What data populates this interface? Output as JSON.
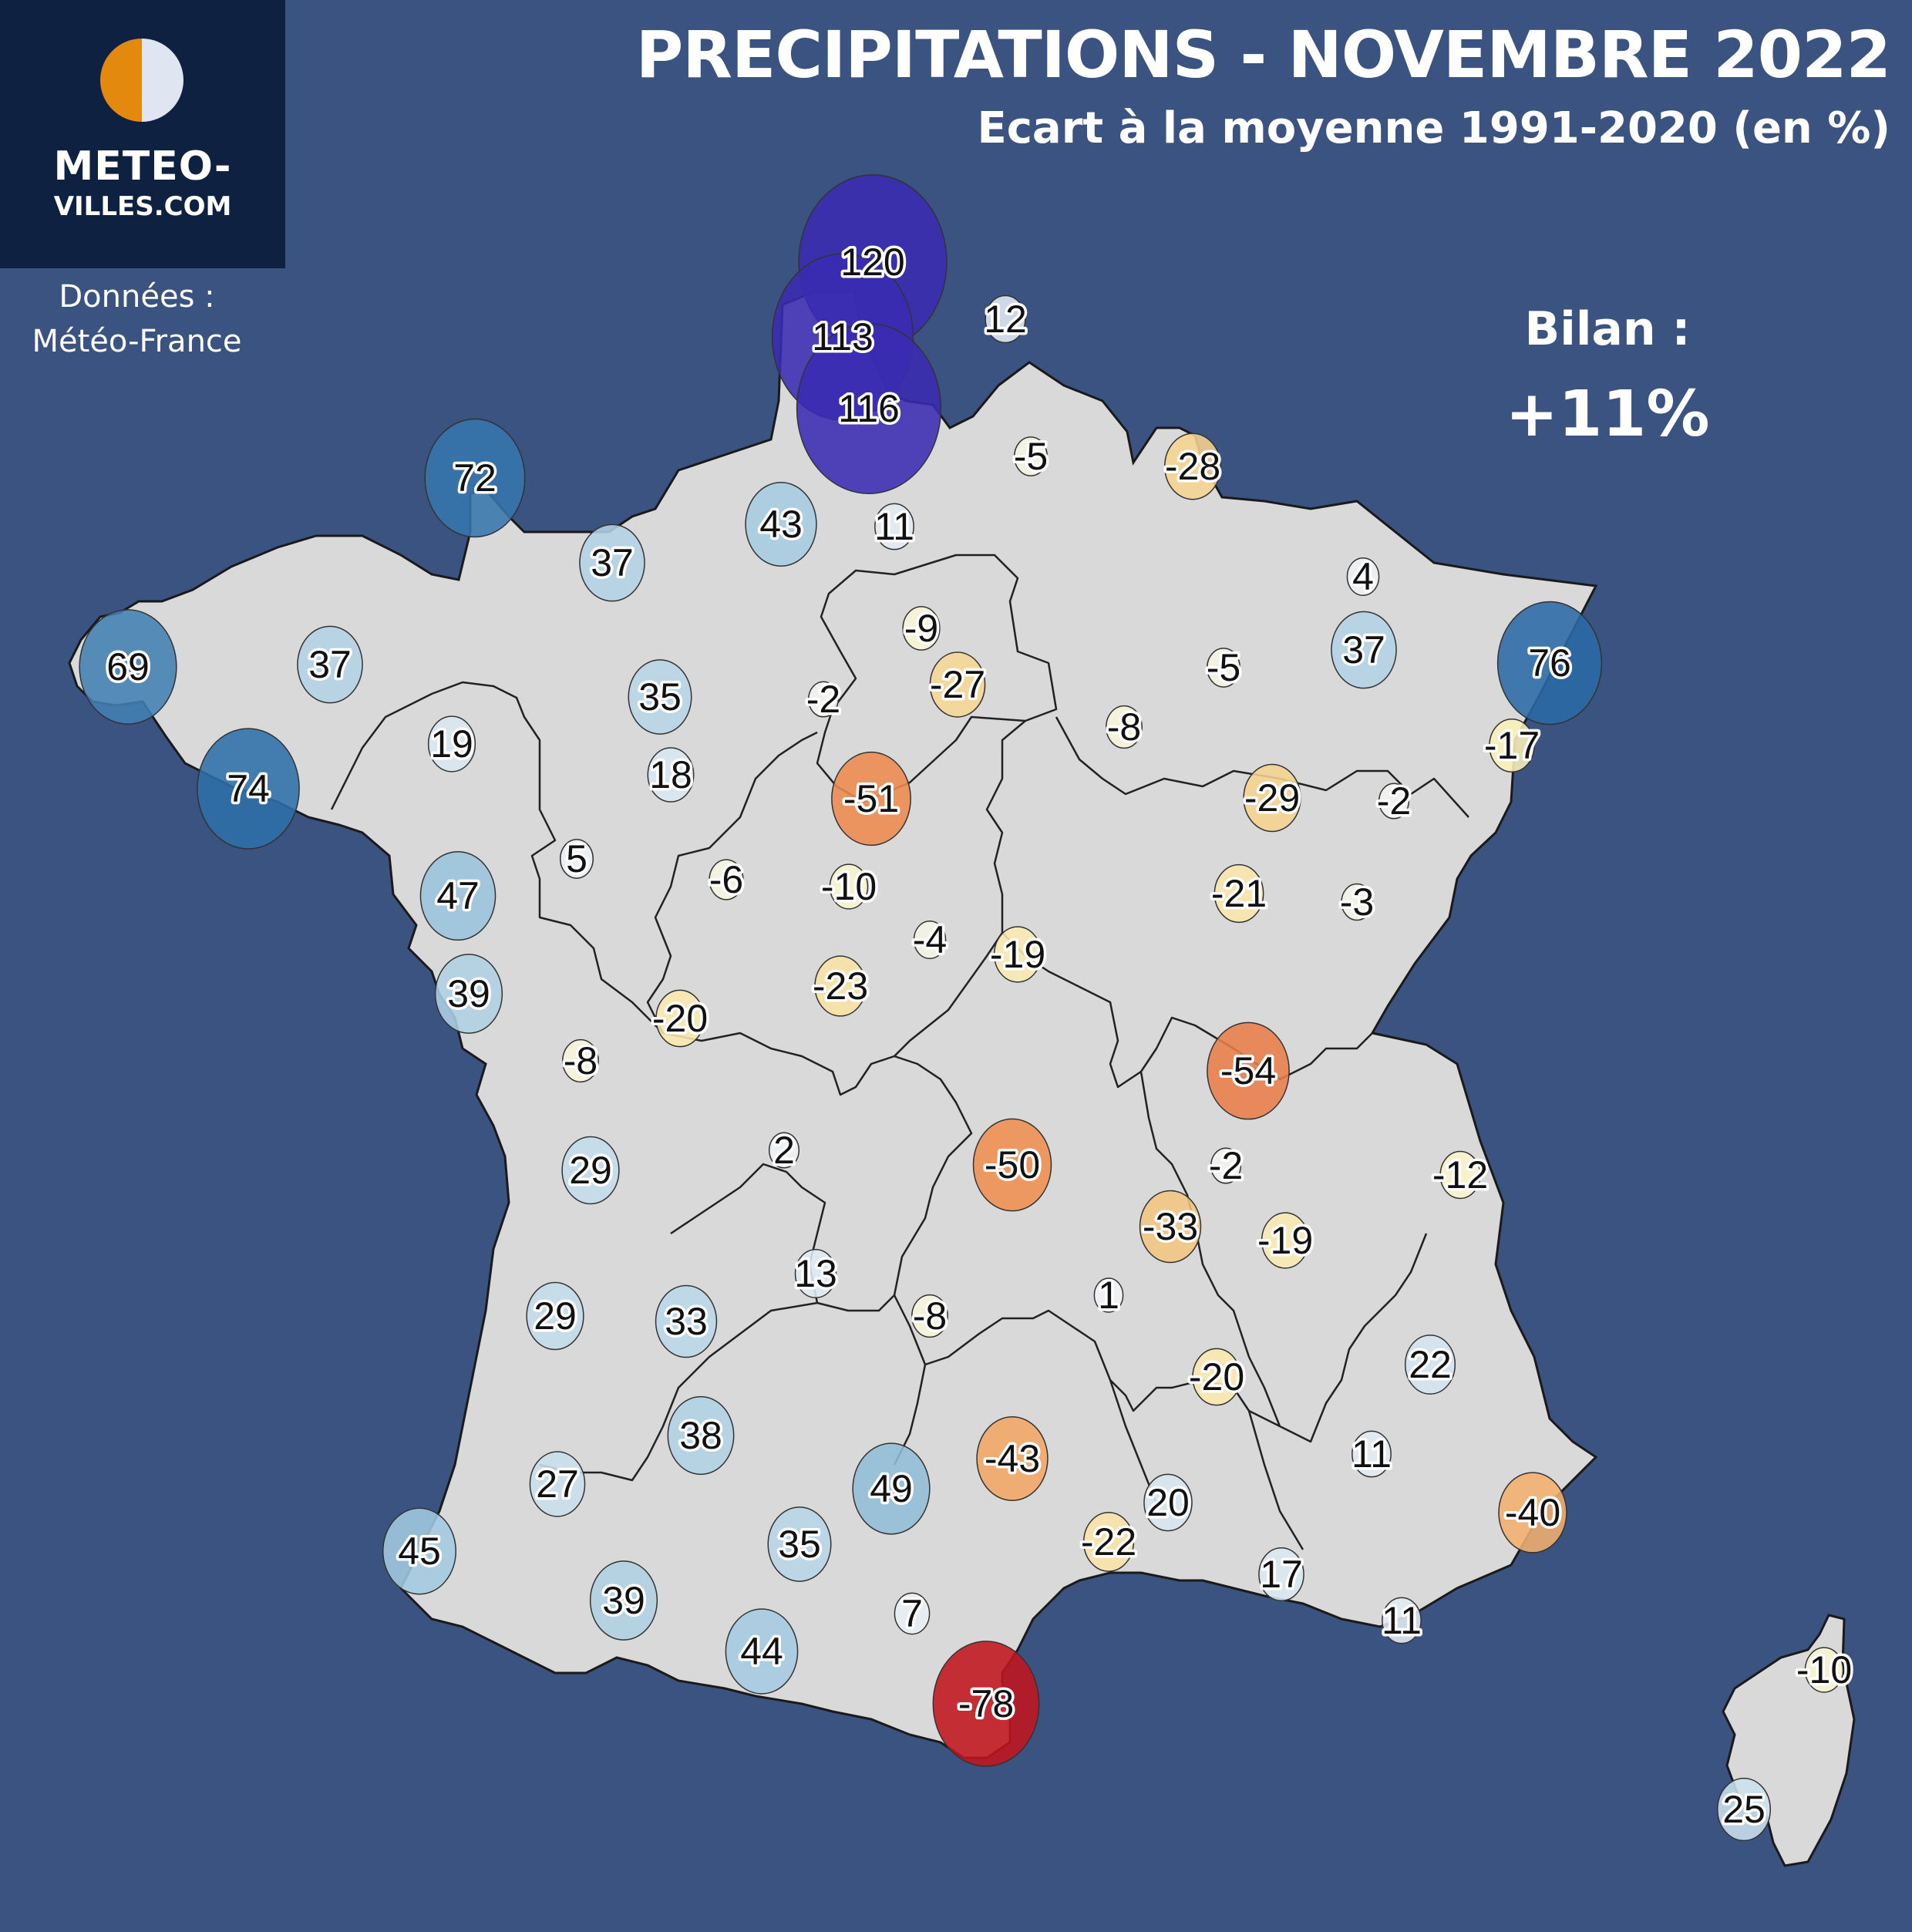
{
  "header": {
    "title": "PRECIPITATIONS - NOVEMBRE 2022",
    "subtitle": "Ecart à la moyenne 1991-2020 (en %)"
  },
  "logo": {
    "line1": "METEO-",
    "line2": "VILLES.COM",
    "colors": {
      "sun": "#e38a0e",
      "moon": "#dfe6f2"
    }
  },
  "source": {
    "line1": "Données :",
    "line2": "Météo-France"
  },
  "summary": {
    "label": "Bilan :",
    "value": "+11%"
  },
  "colors": {
    "background": "#3b5381",
    "land": "#d9d9d9",
    "border": "#1a1a1a"
  },
  "color_scale": [
    {
      "value": -78,
      "color": "#c0141c"
    },
    {
      "value": -50,
      "color": "#ef8e4f"
    },
    {
      "value": -30,
      "color": "#f5cf8a"
    },
    {
      "value": -15,
      "color": "#fbf5c0"
    },
    {
      "value": 0,
      "color": "#f2f4f6"
    },
    {
      "value": 20,
      "color": "#d7e6f0"
    },
    {
      "value": 45,
      "color": "#a2c9e0"
    },
    {
      "value": 75,
      "color": "#2a6ca6"
    },
    {
      "value": 110,
      "color": "#3a2bb2"
    }
  ],
  "stations": [
    {
      "value": "120"
    },
    {
      "value": "113"
    },
    {
      "value": "116"
    },
    {
      "value": "12"
    },
    {
      "value": "-5"
    },
    {
      "value": "-28"
    },
    {
      "value": "11"
    },
    {
      "value": "43"
    },
    {
      "value": "72"
    },
    {
      "value": "37"
    },
    {
      "value": "69"
    },
    {
      "value": "37"
    },
    {
      "value": "19"
    },
    {
      "value": "74"
    },
    {
      "value": "35"
    },
    {
      "value": "18"
    },
    {
      "value": "-9"
    },
    {
      "value": "-27"
    },
    {
      "value": "-2"
    },
    {
      "value": "-51"
    },
    {
      "value": "4"
    },
    {
      "value": "37"
    },
    {
      "value": "76"
    },
    {
      "value": "-5"
    },
    {
      "value": "-8"
    },
    {
      "value": "-17"
    },
    {
      "value": "-29"
    },
    {
      "value": "-2"
    },
    {
      "value": "5"
    },
    {
      "value": "47"
    },
    {
      "value": "-6"
    },
    {
      "value": "-10"
    },
    {
      "value": "-21"
    },
    {
      "value": "-3"
    },
    {
      "value": "39"
    },
    {
      "value": "-4"
    },
    {
      "value": "-19"
    },
    {
      "value": "-23"
    },
    {
      "value": "-20"
    },
    {
      "value": "-8"
    },
    {
      "value": "-54"
    },
    {
      "value": "29"
    },
    {
      "value": "2"
    },
    {
      "value": "-50"
    },
    {
      "value": "-2"
    },
    {
      "value": "-12"
    },
    {
      "value": "-33"
    },
    {
      "value": "-19"
    },
    {
      "value": "13"
    },
    {
      "value": "29"
    },
    {
      "value": "33"
    },
    {
      "value": "-8"
    },
    {
      "value": "1"
    },
    {
      "value": "-20"
    },
    {
      "value": "22"
    },
    {
      "value": "38"
    },
    {
      "value": "11"
    },
    {
      "value": "27"
    },
    {
      "value": "49"
    },
    {
      "value": "-43"
    },
    {
      "value": "20"
    },
    {
      "value": "-40"
    },
    {
      "value": "35"
    },
    {
      "value": "-22"
    },
    {
      "value": "45"
    },
    {
      "value": "39"
    },
    {
      "value": "17"
    },
    {
      "value": "7"
    },
    {
      "value": "11"
    },
    {
      "value": "44"
    },
    {
      "value": "-78"
    },
    {
      "value": "-10"
    },
    {
      "value": "25"
    }
  ]
}
